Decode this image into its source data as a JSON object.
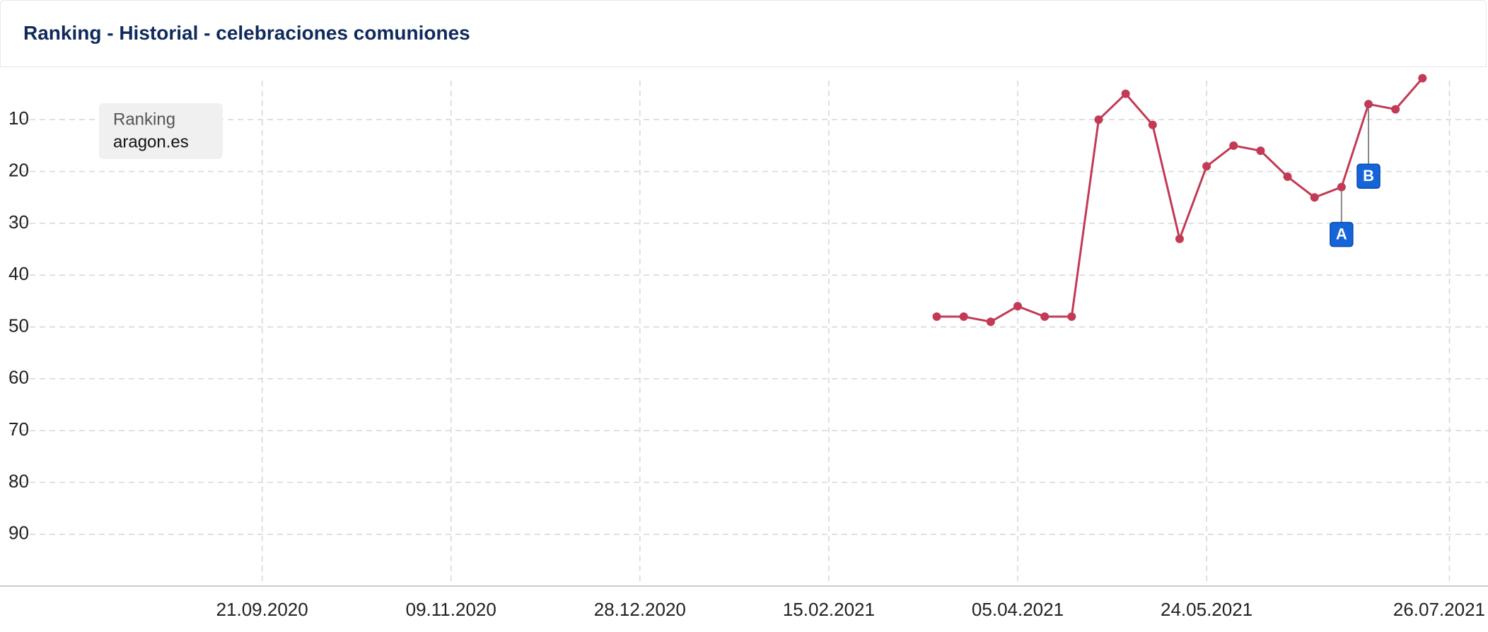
{
  "chart_data": {
    "type": "line",
    "title": "Ranking - Historial - celebraciones comuniones",
    "legend_title": "Ranking",
    "x": [
      "15.03.2021",
      "22.03.2021",
      "29.03.2021",
      "05.04.2021",
      "12.04.2021",
      "19.04.2021",
      "26.04.2021",
      "03.05.2021",
      "10.05.2021",
      "17.05.2021",
      "24.05.2021",
      "31.05.2021",
      "07.06.2021",
      "14.06.2021",
      "21.06.2021",
      "28.06.2021",
      "05.07.2021",
      "12.07.2021",
      "19.07.2021"
    ],
    "series": [
      {
        "name": "aragon.es",
        "color": "#c23a55",
        "values": [
          48,
          48,
          49,
          46,
          48,
          48,
          10,
          5,
          11,
          33,
          19,
          15,
          16,
          21,
          25,
          23,
          7,
          8,
          2
        ]
      }
    ],
    "xlim": [
      "15.07.2020",
      "05.08.2021"
    ],
    "xticks": [
      "21.09.2020",
      "09.11.2020",
      "28.12.2020",
      "15.02.2021",
      "05.04.2021",
      "24.05.2021",
      "26.07.2021"
    ],
    "ylim": [
      0,
      100
    ],
    "y_inverted": true,
    "yticks": [
      10,
      20,
      30,
      40,
      50,
      60,
      70,
      80,
      90
    ],
    "grid": true,
    "annotations": [
      {
        "label": "A",
        "x": "28.06.2021"
      },
      {
        "label": "B",
        "x": "05.07.2021"
      }
    ]
  }
}
